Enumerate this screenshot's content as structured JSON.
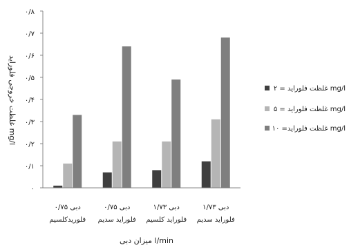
{
  "chart_data": {
    "type": "bar",
    "categories": [
      [
        "دبی ۰/۷۵",
        "فلوریدکلسیم"
      ],
      [
        "دبی ۰/۷۵",
        "فلوراید سدیم"
      ],
      [
        "دبی ۱/۷۳",
        "فلوراید کلسیم"
      ],
      [
        "دبی ۱/۷۳",
        "فلوراید سدیم"
      ]
    ],
    "series": [
      {
        "name": "غلظت فلوراید = ۲ mg/l",
        "color": "#3f3f3f",
        "values": [
          0.01,
          0.07,
          0.08,
          0.12
        ]
      },
      {
        "name": "غلظت فلوراید = ۵ mg/l",
        "color": "#b5b5b5",
        "values": [
          0.11,
          0.21,
          0.21,
          0.31
        ]
      },
      {
        "name": "غلظت فلوراید= ۱۰ mg/l",
        "color": "#7f7f7f",
        "values": [
          0.33,
          0.64,
          0.49,
          0.68
        ]
      }
    ],
    "yticks": [
      "۰",
      "۰/۱",
      "۰/۲",
      "۰/۳",
      "۰/۴",
      "۰/۵",
      "۰/۶",
      "۰/۷",
      "۰/۸"
    ],
    "ylim": [
      0,
      0.8
    ],
    "xlabel": "میزان دبی l/min",
    "ylabel": "غلظت خروجی فلوراید mg/l",
    "grid": false,
    "legend_position": "right"
  }
}
